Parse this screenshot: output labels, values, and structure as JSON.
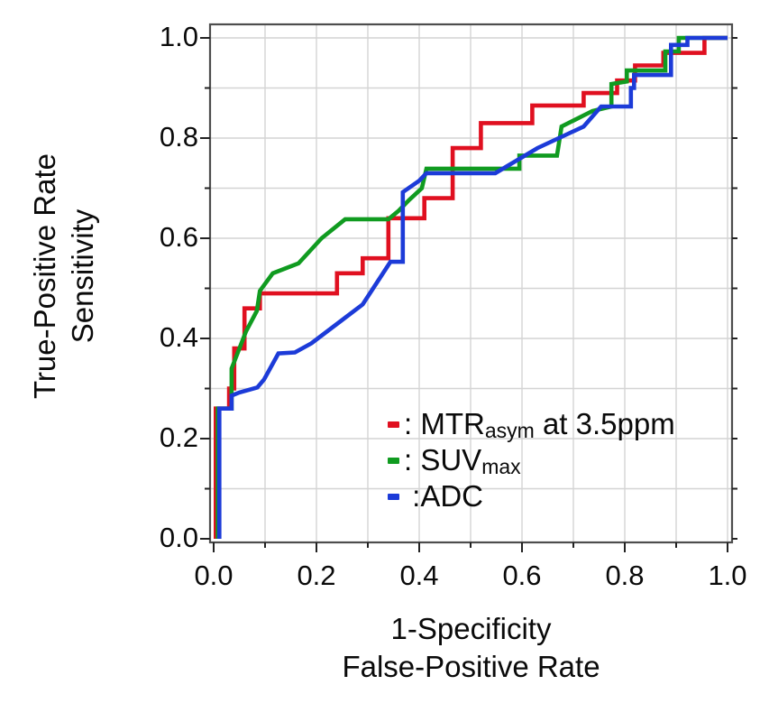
{
  "figure": {
    "x_axis": {
      "title_line1": "1-Specificity",
      "title_line2": "False-Positive Rate",
      "tick_labels": [
        "0.0",
        "0.2",
        "0.4",
        "0.6",
        "0.8",
        "1.0"
      ]
    },
    "y_axis": {
      "title_line1": "True-Positive Rate",
      "title_line2": "Sensitivity",
      "tick_labels": [
        "1.0",
        "0.8",
        "0.6",
        "0.4",
        "0.2",
        "0.0"
      ]
    },
    "legend": {
      "items": [
        {
          "marker_color": "#e01020",
          "sep": ": ",
          "pre": "MTR",
          "sub": "asym",
          "post": " at 3.5ppm"
        },
        {
          "marker_color": "#109b20",
          "sep": ": ",
          "pre": "SUV",
          "sub": "max",
          "post": ""
        },
        {
          "marker_color": "#1c3bd8",
          "sep": " :",
          "pre": "ADC",
          "sub": "",
          "post": ""
        }
      ]
    },
    "colors": {
      "grid": "#d4d4d4",
      "frame": "#4d4d4d",
      "tick": "#222222"
    }
  },
  "chart_data": {
    "type": "line",
    "subtype": "ROC step curves",
    "title": "",
    "xlabel": "1-Specificity / False-Positive Rate",
    "ylabel": "True-Positive Rate / Sensitivity",
    "xlim": [
      0,
      1
    ],
    "ylim": [
      0,
      1
    ],
    "x_ticks": [
      0.0,
      0.2,
      0.4,
      0.6,
      0.8,
      1.0
    ],
    "y_ticks": [
      0.0,
      0.2,
      0.4,
      0.6,
      0.8,
      1.0
    ],
    "minor_step": 0.1,
    "grid": true,
    "legend_position": "inside lower-right",
    "series": [
      {
        "id": "mtr-asym",
        "name": "MTR_asym at 3.5ppm",
        "color": "#e01020",
        "points": [
          [
            0.004,
            0
          ],
          [
            0.004,
            0.26
          ],
          [
            0.03,
            0.26
          ],
          [
            0.03,
            0.3
          ],
          [
            0.04,
            0.3
          ],
          [
            0.04,
            0.38
          ],
          [
            0.06,
            0.38
          ],
          [
            0.06,
            0.46
          ],
          [
            0.09,
            0.46
          ],
          [
            0.09,
            0.49
          ],
          [
            0.24,
            0.49
          ],
          [
            0.24,
            0.53
          ],
          [
            0.29,
            0.53
          ],
          [
            0.29,
            0.56
          ],
          [
            0.34,
            0.56
          ],
          [
            0.34,
            0.64
          ],
          [
            0.41,
            0.64
          ],
          [
            0.41,
            0.68
          ],
          [
            0.465,
            0.68
          ],
          [
            0.465,
            0.78
          ],
          [
            0.52,
            0.78
          ],
          [
            0.52,
            0.83
          ],
          [
            0.62,
            0.83
          ],
          [
            0.62,
            0.865
          ],
          [
            0.72,
            0.865
          ],
          [
            0.72,
            0.89
          ],
          [
            0.785,
            0.89
          ],
          [
            0.785,
            0.915
          ],
          [
            0.82,
            0.915
          ],
          [
            0.82,
            0.945
          ],
          [
            0.875,
            0.945
          ],
          [
            0.875,
            0.97
          ],
          [
            0.955,
            0.97
          ],
          [
            0.955,
            1.0
          ],
          [
            1.0,
            1.0
          ]
        ]
      },
      {
        "id": "suv-max",
        "name": "SUV_max",
        "color": "#109b20",
        "points": [
          [
            0.008,
            0
          ],
          [
            0.008,
            0.26
          ],
          [
            0.035,
            0.26
          ],
          [
            0.035,
            0.34
          ],
          [
            0.063,
            0.414
          ],
          [
            0.084,
            0.455
          ],
          [
            0.09,
            0.495
          ],
          [
            0.115,
            0.53
          ],
          [
            0.165,
            0.55
          ],
          [
            0.21,
            0.6
          ],
          [
            0.256,
            0.638
          ],
          [
            0.34,
            0.638
          ],
          [
            0.36,
            0.655
          ],
          [
            0.38,
            0.676
          ],
          [
            0.405,
            0.7
          ],
          [
            0.414,
            0.739
          ],
          [
            0.595,
            0.739
          ],
          [
            0.595,
            0.765
          ],
          [
            0.668,
            0.765
          ],
          [
            0.677,
            0.823
          ],
          [
            0.737,
            0.854
          ],
          [
            0.774,
            0.863
          ],
          [
            0.774,
            0.908
          ],
          [
            0.804,
            0.913
          ],
          [
            0.804,
            0.935
          ],
          [
            0.879,
            0.935
          ],
          [
            0.879,
            0.973
          ],
          [
            0.905,
            0.973
          ],
          [
            0.905,
            1.0
          ],
          [
            1.0,
            1.0
          ]
        ]
      },
      {
        "id": "adc",
        "name": "ADC",
        "color": "#1c3bd8",
        "points": [
          [
            0.011,
            0
          ],
          [
            0.011,
            0.26
          ],
          [
            0.035,
            0.26
          ],
          [
            0.035,
            0.286
          ],
          [
            0.05,
            0.292
          ],
          [
            0.085,
            0.302
          ],
          [
            0.098,
            0.318
          ],
          [
            0.126,
            0.37
          ],
          [
            0.158,
            0.372
          ],
          [
            0.19,
            0.39
          ],
          [
            0.29,
            0.468
          ],
          [
            0.344,
            0.553
          ],
          [
            0.368,
            0.553
          ],
          [
            0.368,
            0.692
          ],
          [
            0.4,
            0.715
          ],
          [
            0.414,
            0.73
          ],
          [
            0.548,
            0.73
          ],
          [
            0.63,
            0.78
          ],
          [
            0.72,
            0.823
          ],
          [
            0.754,
            0.863
          ],
          [
            0.812,
            0.863
          ],
          [
            0.812,
            0.9
          ],
          [
            0.818,
            0.9
          ],
          [
            0.818,
            0.926
          ],
          [
            0.89,
            0.926
          ],
          [
            0.89,
            0.986
          ],
          [
            0.922,
            0.986
          ],
          [
            0.922,
            1.0
          ],
          [
            1.0,
            1.0
          ]
        ]
      }
    ]
  }
}
